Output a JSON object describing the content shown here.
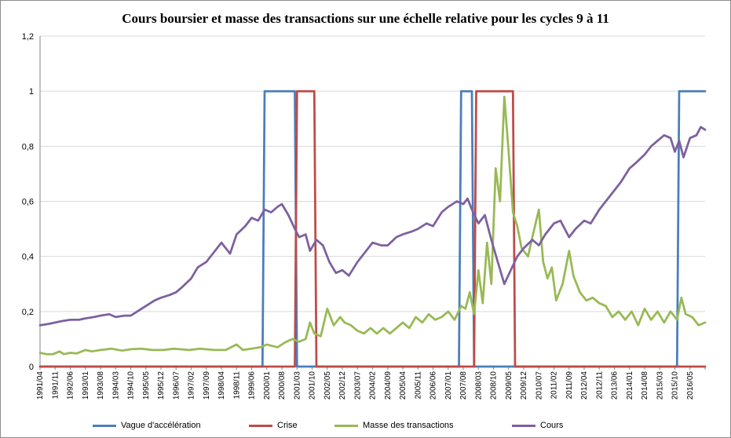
{
  "chart_data": {
    "type": "line",
    "title": "Cours  boursier et masse des transactions sur une échelle relative pour les cycles 9 à 11",
    "xlabel": "",
    "ylabel": "",
    "ylim": [
      0,
      1.2
    ],
    "yticks": [
      "0",
      "0,2",
      "0,4",
      "0,6",
      "0,8",
      "1",
      "1,2"
    ],
    "grid": "horizontal",
    "legend_position": "bottom",
    "x_range": [
      "1991/04",
      "2016/12"
    ],
    "x_tick_labels": [
      "1991/04",
      "1991/11",
      "1992/06",
      "1993/01",
      "1993/08",
      "1994/03",
      "1994/10",
      "1995/05",
      "1995/12",
      "1996/07",
      "1997/02",
      "1997/09",
      "1998/04",
      "1998/11",
      "1999/06",
      "2000/01",
      "2000/08",
      "2001/03",
      "2001/10",
      "2002/05",
      "2002/12",
      "2003/07",
      "2004/02",
      "2004/09",
      "2005/04",
      "2005/11",
      "2006/06",
      "2007/01",
      "2007/08",
      "2008/03",
      "2008/10",
      "2009/05",
      "2009/12",
      "2010/07",
      "2011/02",
      "2011/09",
      "2012/04",
      "2012/11",
      "2013/06",
      "2014/01",
      "2014/08",
      "2015/03",
      "2015/10",
      "2016/05"
    ],
    "series": [
      {
        "name": "Vague d'accélération",
        "color": "#4a7ebb",
        "style": "step",
        "points": [
          [
            "1991/04",
            0
          ],
          [
            "1999/11",
            0
          ],
          [
            "1999/12",
            1
          ],
          [
            "2001/02",
            1
          ],
          [
            "2001/03",
            0
          ],
          [
            "2007/06",
            0
          ],
          [
            "2007/07",
            1
          ],
          [
            "2007/12",
            1
          ],
          [
            "2008/01",
            0
          ],
          [
            "2015/11",
            0
          ],
          [
            "2015/12",
            1
          ],
          [
            "2016/12",
            1
          ]
        ]
      },
      {
        "name": "Crise",
        "color": "#be4b48",
        "style": "step",
        "points": [
          [
            "1991/04",
            0
          ],
          [
            "2001/02",
            0
          ],
          [
            "2001/03",
            1
          ],
          [
            "2001/11",
            1
          ],
          [
            "2001/12",
            0
          ],
          [
            "2008/01",
            0
          ],
          [
            "2008/02",
            1
          ],
          [
            "2009/07",
            1
          ],
          [
            "2009/08",
            0
          ],
          [
            "2016/12",
            0
          ]
        ]
      },
      {
        "name": "Masse des transactions",
        "color": "#98b954",
        "style": "line",
        "points": [
          [
            "1991/04",
            0.05
          ],
          [
            "1991/07",
            0.045
          ],
          [
            "1991/10",
            0.045
          ],
          [
            "1992/01",
            0.055
          ],
          [
            "1992/03",
            0.045
          ],
          [
            "1992/06",
            0.05
          ],
          [
            "1992/09",
            0.048
          ],
          [
            "1993/01",
            0.06
          ],
          [
            "1993/04",
            0.055
          ],
          [
            "1993/08",
            0.06
          ],
          [
            "1994/01",
            0.065
          ],
          [
            "1994/06",
            0.058
          ],
          [
            "1994/10",
            0.063
          ],
          [
            "1995/03",
            0.065
          ],
          [
            "1995/08",
            0.06
          ],
          [
            "1996/01",
            0.06
          ],
          [
            "1996/06",
            0.065
          ],
          [
            "1997/01",
            0.06
          ],
          [
            "1997/06",
            0.065
          ],
          [
            "1998/01",
            0.06
          ],
          [
            "1998/06",
            0.06
          ],
          [
            "1998/11",
            0.08
          ],
          [
            "1999/02",
            0.06
          ],
          [
            "1999/06",
            0.065
          ],
          [
            "1999/10",
            0.07
          ],
          [
            "2000/01",
            0.08
          ],
          [
            "2000/06",
            0.07
          ],
          [
            "2000/10",
            0.09
          ],
          [
            "2001/01",
            0.1
          ],
          [
            "2001/04",
            0.09
          ],
          [
            "2001/07",
            0.1
          ],
          [
            "2001/09",
            0.16
          ],
          [
            "2001/11",
            0.12
          ],
          [
            "2002/02",
            0.11
          ],
          [
            "2002/05",
            0.21
          ],
          [
            "2002/08",
            0.15
          ],
          [
            "2002/11",
            0.18
          ],
          [
            "2003/01",
            0.16
          ],
          [
            "2003/04",
            0.15
          ],
          [
            "2003/07",
            0.13
          ],
          [
            "2003/10",
            0.12
          ],
          [
            "2004/01",
            0.14
          ],
          [
            "2004/04",
            0.12
          ],
          [
            "2004/07",
            0.14
          ],
          [
            "2004/10",
            0.12
          ],
          [
            "2005/01",
            0.14
          ],
          [
            "2005/04",
            0.16
          ],
          [
            "2005/07",
            0.14
          ],
          [
            "2005/10",
            0.18
          ],
          [
            "2006/01",
            0.16
          ],
          [
            "2006/04",
            0.19
          ],
          [
            "2006/07",
            0.17
          ],
          [
            "2006/10",
            0.18
          ],
          [
            "2007/01",
            0.2
          ],
          [
            "2007/04",
            0.17
          ],
          [
            "2007/07",
            0.22
          ],
          [
            "2007/09",
            0.21
          ],
          [
            "2007/11",
            0.27
          ],
          [
            "2008/01",
            0.19
          ],
          [
            "2008/03",
            0.35
          ],
          [
            "2008/05",
            0.23
          ],
          [
            "2008/07",
            0.45
          ],
          [
            "2008/09",
            0.3
          ],
          [
            "2008/11",
            0.72
          ],
          [
            "2009/01",
            0.6
          ],
          [
            "2009/03",
            0.98
          ],
          [
            "2009/05",
            0.78
          ],
          [
            "2009/07",
            0.56
          ],
          [
            "2009/09",
            0.51
          ],
          [
            "2009/11",
            0.43
          ],
          [
            "2010/02",
            0.4
          ],
          [
            "2010/04",
            0.47
          ],
          [
            "2010/07",
            0.57
          ],
          [
            "2010/09",
            0.38
          ],
          [
            "2010/11",
            0.32
          ],
          [
            "2011/01",
            0.36
          ],
          [
            "2011/03",
            0.24
          ],
          [
            "2011/06",
            0.3
          ],
          [
            "2011/09",
            0.42
          ],
          [
            "2011/11",
            0.33
          ],
          [
            "2012/02",
            0.27
          ],
          [
            "2012/05",
            0.24
          ],
          [
            "2012/08",
            0.25
          ],
          [
            "2012/11",
            0.23
          ],
          [
            "2013/02",
            0.22
          ],
          [
            "2013/05",
            0.18
          ],
          [
            "2013/08",
            0.2
          ],
          [
            "2013/11",
            0.17
          ],
          [
            "2014/02",
            0.2
          ],
          [
            "2014/05",
            0.15
          ],
          [
            "2014/08",
            0.21
          ],
          [
            "2014/11",
            0.17
          ],
          [
            "2015/02",
            0.2
          ],
          [
            "2015/05",
            0.16
          ],
          [
            "2015/08",
            0.2
          ],
          [
            "2015/11",
            0.17
          ],
          [
            "2016/01",
            0.25
          ],
          [
            "2016/03",
            0.19
          ],
          [
            "2016/06",
            0.18
          ],
          [
            "2016/09",
            0.15
          ],
          [
            "2016/12",
            0.16
          ]
        ]
      },
      {
        "name": "Cours",
        "color": "#7d60a0",
        "style": "line",
        "points": [
          [
            "1991/04",
            0.15
          ],
          [
            "1991/08",
            0.155
          ],
          [
            "1991/11",
            0.16
          ],
          [
            "1992/02",
            0.165
          ],
          [
            "1992/06",
            0.17
          ],
          [
            "1992/10",
            0.17
          ],
          [
            "1993/01",
            0.175
          ],
          [
            "1993/05",
            0.18
          ],
          [
            "1993/08",
            0.185
          ],
          [
            "1993/12",
            0.19
          ],
          [
            "1994/03",
            0.18
          ],
          [
            "1994/07",
            0.185
          ],
          [
            "1994/10",
            0.185
          ],
          [
            "1995/01",
            0.2
          ],
          [
            "1995/05",
            0.22
          ],
          [
            "1995/09",
            0.24
          ],
          [
            "1995/12",
            0.25
          ],
          [
            "1996/04",
            0.26
          ],
          [
            "1996/07",
            0.27
          ],
          [
            "1996/10",
            0.29
          ],
          [
            "1997/02",
            0.32
          ],
          [
            "1997/05",
            0.36
          ],
          [
            "1997/09",
            0.38
          ],
          [
            "1997/12",
            0.41
          ],
          [
            "1998/04",
            0.45
          ],
          [
            "1998/08",
            0.41
          ],
          [
            "1998/11",
            0.48
          ],
          [
            "1999/03",
            0.51
          ],
          [
            "1999/06",
            0.54
          ],
          [
            "1999/09",
            0.53
          ],
          [
            "1999/12",
            0.57
          ],
          [
            "2000/03",
            0.56
          ],
          [
            "2000/06",
            0.58
          ],
          [
            "2000/08",
            0.59
          ],
          [
            "2000/11",
            0.55
          ],
          [
            "2001/02",
            0.5
          ],
          [
            "2001/04",
            0.47
          ],
          [
            "2001/07",
            0.48
          ],
          [
            "2001/09",
            0.42
          ],
          [
            "2001/12",
            0.46
          ],
          [
            "2002/03",
            0.44
          ],
          [
            "2002/06",
            0.38
          ],
          [
            "2002/09",
            0.34
          ],
          [
            "2002/12",
            0.35
          ],
          [
            "2003/03",
            0.33
          ],
          [
            "2003/07",
            0.38
          ],
          [
            "2003/10",
            0.41
          ],
          [
            "2004/02",
            0.45
          ],
          [
            "2004/06",
            0.44
          ],
          [
            "2004/09",
            0.44
          ],
          [
            "2005/01",
            0.47
          ],
          [
            "2005/04",
            0.48
          ],
          [
            "2005/08",
            0.49
          ],
          [
            "2005/11",
            0.5
          ],
          [
            "2006/03",
            0.52
          ],
          [
            "2006/06",
            0.51
          ],
          [
            "2006/10",
            0.56
          ],
          [
            "2007/01",
            0.58
          ],
          [
            "2007/05",
            0.6
          ],
          [
            "2007/08",
            0.59
          ],
          [
            "2007/10",
            0.61
          ],
          [
            "2007/12",
            0.57
          ],
          [
            "2008/03",
            0.52
          ],
          [
            "2008/06",
            0.55
          ],
          [
            "2008/09",
            0.46
          ],
          [
            "2008/12",
            0.38
          ],
          [
            "2009/03",
            0.3
          ],
          [
            "2009/06",
            0.35
          ],
          [
            "2009/09",
            0.4
          ],
          [
            "2009/12",
            0.43
          ],
          [
            "2010/04",
            0.46
          ],
          [
            "2010/07",
            0.44
          ],
          [
            "2010/10",
            0.48
          ],
          [
            "2011/02",
            0.52
          ],
          [
            "2011/05",
            0.53
          ],
          [
            "2011/09",
            0.47
          ],
          [
            "2011/12",
            0.5
          ],
          [
            "2012/04",
            0.53
          ],
          [
            "2012/07",
            0.52
          ],
          [
            "2012/11",
            0.57
          ],
          [
            "2013/02",
            0.6
          ],
          [
            "2013/06",
            0.64
          ],
          [
            "2013/09",
            0.67
          ],
          [
            "2014/01",
            0.72
          ],
          [
            "2014/04",
            0.74
          ],
          [
            "2014/08",
            0.77
          ],
          [
            "2014/11",
            0.8
          ],
          [
            "2015/02",
            0.82
          ],
          [
            "2015/05",
            0.84
          ],
          [
            "2015/08",
            0.83
          ],
          [
            "2015/10",
            0.78
          ],
          [
            "2015/12",
            0.82
          ],
          [
            "2016/02",
            0.76
          ],
          [
            "2016/05",
            0.83
          ],
          [
            "2016/08",
            0.84
          ],
          [
            "2016/10",
            0.87
          ],
          [
            "2016/12",
            0.86
          ]
        ]
      }
    ]
  }
}
